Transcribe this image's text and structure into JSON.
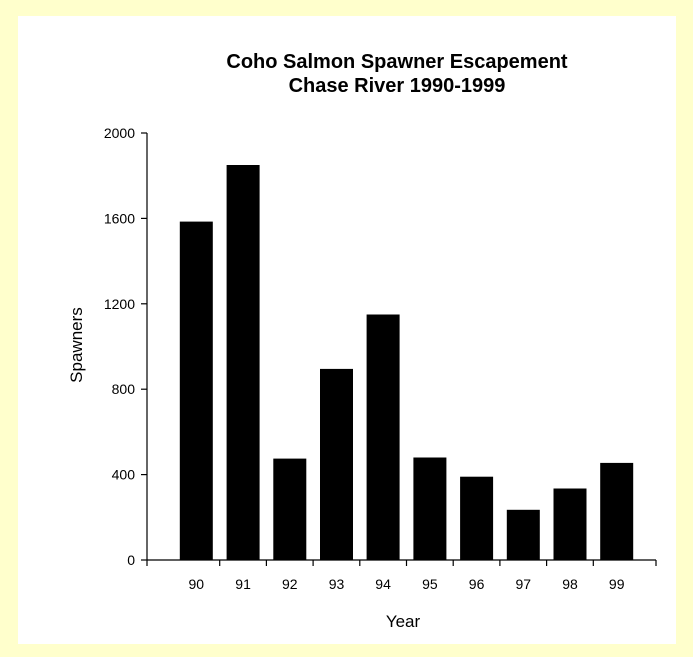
{
  "chart_data": {
    "type": "bar",
    "title": [
      "Coho Salmon Spawner Escapement",
      "Chase River 1990-1999"
    ],
    "xlabel": "Year",
    "ylabel": "Spawners",
    "categories": [
      "90",
      "91",
      "92",
      "93",
      "94",
      "95",
      "96",
      "97",
      "98",
      "99"
    ],
    "values": [
      1585,
      1850,
      475,
      895,
      1150,
      480,
      390,
      235,
      335,
      455
    ],
    "ylim": [
      0,
      2000
    ],
    "yticks": [
      "0",
      "400",
      "800",
      "1200",
      "1600",
      "2000"
    ],
    "grid": false,
    "legend": "none",
    "bar_color": "#000000",
    "background": "#ffffcc"
  }
}
